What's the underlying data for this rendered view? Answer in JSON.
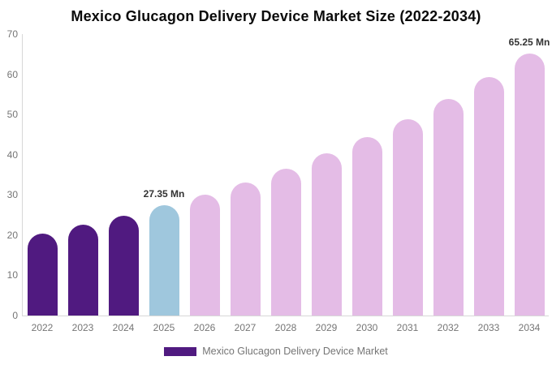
{
  "chart_data": {
    "type": "bar",
    "title": "Mexico Glucagon Delivery Device Market Size (2022-2034)",
    "unit": "Mn",
    "categories": [
      "2022",
      "2023",
      "2024",
      "2025",
      "2026",
      "2027",
      "2028",
      "2029",
      "2030",
      "2031",
      "2032",
      "2033",
      "2034"
    ],
    "values": [
      20.47,
      22.55,
      24.83,
      27.35,
      30.12,
      33.18,
      36.54,
      40.25,
      44.33,
      48.82,
      53.77,
      59.22,
      65.25
    ],
    "bar_colors": [
      "#501A80",
      "#501A80",
      "#501A80",
      "#9FC7DD",
      "#E4BCE6",
      "#E4BCE6",
      "#E4BCE6",
      "#E4BCE6",
      "#E4BCE6",
      "#E4BCE6",
      "#E4BCE6",
      "#E4BCE6",
      "#E4BCE6"
    ],
    "data_labels": [
      {
        "category": "2025",
        "text": "27.35 Mn"
      },
      {
        "category": "2034",
        "text": "65.25 Mn"
      }
    ],
    "xlabel": "",
    "ylabel": "",
    "ylim": [
      0,
      70
    ],
    "yticks": [
      0,
      10,
      20,
      30,
      40,
      50,
      60,
      70
    ],
    "grid": false,
    "legend_position": "bottom",
    "legend": [
      {
        "label": "Mexico Glucagon Delivery Device Market",
        "color": "#501A80"
      }
    ]
  },
  "colors": {
    "historical_bar": "#501A80",
    "base_year_bar": "#9FC7DD",
    "forecast_bar": "#E4BCE6",
    "title_text": "#0A0A0A",
    "axis_text": "#757575",
    "data_label_text": "#333333",
    "axis_line": "#D8D8D8"
  }
}
